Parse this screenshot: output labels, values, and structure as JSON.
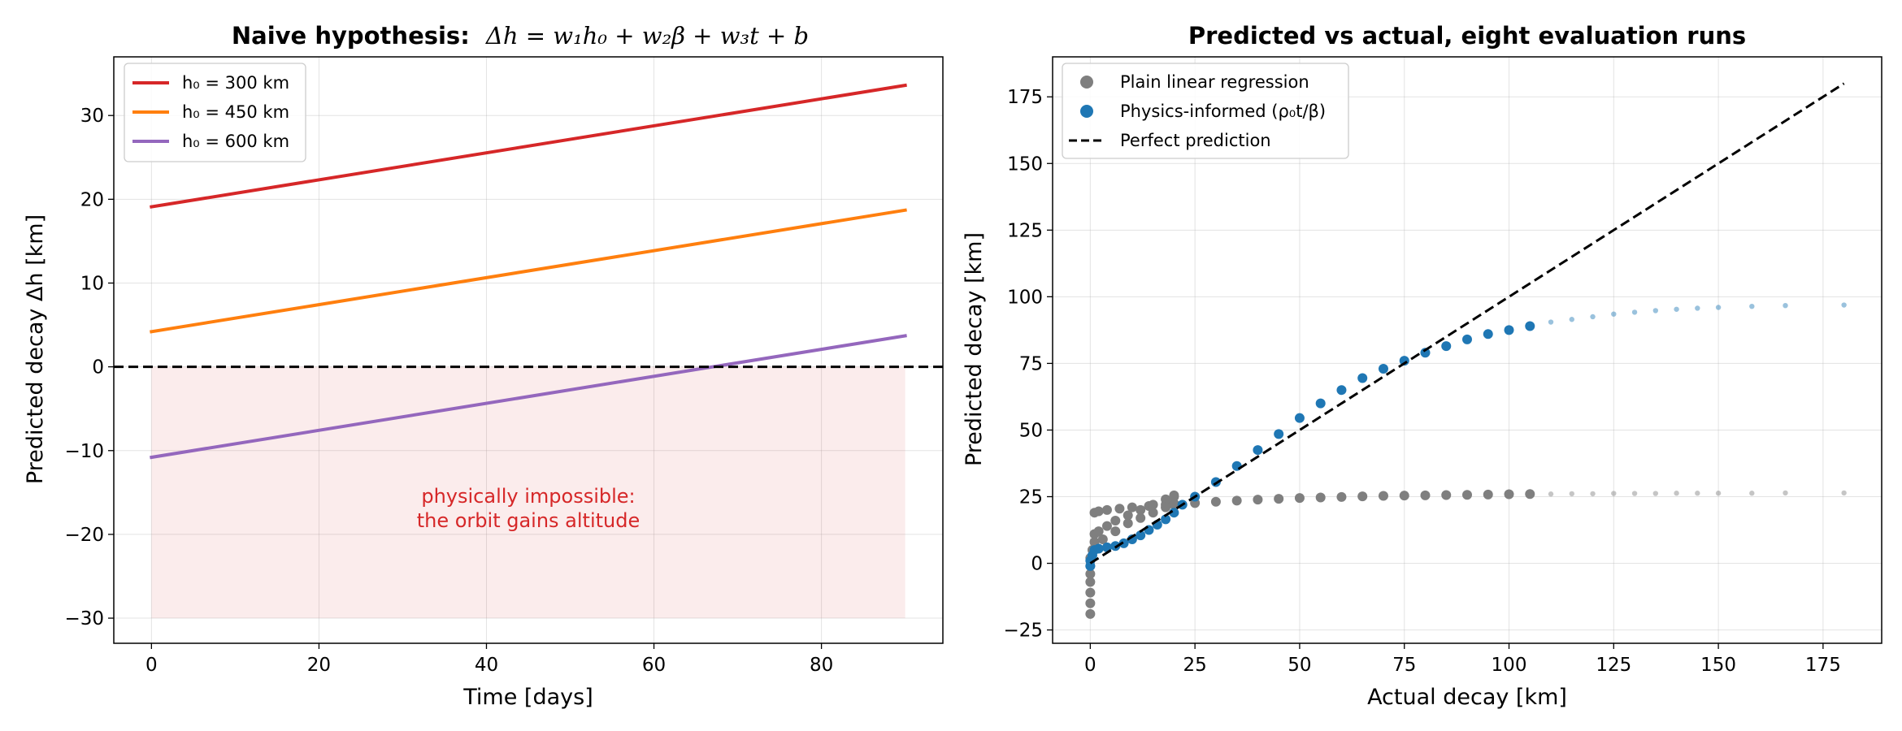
{
  "chart_data": [
    {
      "type": "line",
      "title": {
        "prefix": "Naive hypothesis:",
        "formula": "Δh = w₁h₀ + w₂β + w₃t + b"
      },
      "xlabel": "Time [days]",
      "ylabel": "Predicted decay Δh [km]",
      "xlim": [
        -4.5,
        94.5
      ],
      "ylim": [
        -33,
        37
      ],
      "xticks": [
        0,
        20,
        40,
        60,
        80
      ],
      "yticks": [
        -30,
        -20,
        -10,
        0,
        10,
        20,
        30
      ],
      "grid": true,
      "legend_position": "top-left",
      "series": [
        {
          "name": "h₀ = 300 km",
          "color": "#d62728",
          "x": [
            0,
            90
          ],
          "y": [
            19.1,
            33.6
          ]
        },
        {
          "name": "h₀ = 450 km",
          "color": "#ff7f0e",
          "x": [
            0,
            90
          ],
          "y": [
            4.2,
            18.7
          ]
        },
        {
          "name": "h₀ = 600 km",
          "color": "#9467bd",
          "x": [
            0,
            90
          ],
          "y": [
            -10.8,
            3.7
          ]
        }
      ],
      "reference_line": {
        "y": 0,
        "style": "dashed",
        "color": "#000000"
      },
      "shaded_region": {
        "x": [
          0,
          90
        ],
        "y": [
          -30,
          0
        ],
        "color": "#d62728"
      },
      "annotation": {
        "lines": [
          "physically impossible:",
          "the orbit gains altitude"
        ],
        "x": 45,
        "y": -16.5,
        "color": "#d62728"
      }
    },
    {
      "type": "scatter",
      "title": "Predicted vs actual, eight evaluation runs",
      "xlabel": "Actual decay [km]",
      "ylabel": "Predicted decay [km]",
      "xlim": [
        -9,
        189
      ],
      "ylim": [
        -30,
        190
      ],
      "xticks": [
        0,
        25,
        50,
        75,
        100,
        125,
        150,
        175
      ],
      "yticks": [
        -25,
        0,
        25,
        50,
        75,
        100,
        125,
        150,
        175
      ],
      "grid": true,
      "legend_position": "top-left",
      "series": [
        {
          "name": "Plain linear regression",
          "color": "#7f7f7f",
          "points": [
            [
              0,
              -19
            ],
            [
              0,
              -15
            ],
            [
              0,
              -11
            ],
            [
              0,
              -7
            ],
            [
              0,
              -4
            ],
            [
              0,
              -1
            ],
            [
              0,
              2
            ],
            [
              0.5,
              5
            ],
            [
              1,
              8
            ],
            [
              1,
              11
            ],
            [
              1,
              19
            ],
            [
              2,
              19.5
            ],
            [
              4,
              20
            ],
            [
              7,
              20.5
            ],
            [
              10,
              21
            ],
            [
              14,
              21.5
            ],
            [
              18,
              22
            ],
            [
              20,
              22.5
            ],
            [
              20,
              25.5
            ],
            [
              2,
              12
            ],
            [
              4,
              14
            ],
            [
              6,
              16
            ],
            [
              9,
              18
            ],
            [
              12,
              20
            ],
            [
              15,
              22
            ],
            [
              18,
              24
            ],
            [
              20,
              25
            ],
            [
              3,
              9
            ],
            [
              6,
              12
            ],
            [
              9,
              15
            ],
            [
              12,
              17
            ],
            [
              15,
              19
            ],
            [
              18,
              21
            ],
            [
              20,
              22
            ],
            [
              25,
              22.6
            ],
            [
              30,
              23.1
            ],
            [
              35,
              23.5
            ],
            [
              40,
              23.9
            ],
            [
              45,
              24.2
            ],
            [
              50,
              24.5
            ],
            [
              55,
              24.7
            ],
            [
              60,
              24.9
            ],
            [
              65,
              25.1
            ],
            [
              70,
              25.3
            ],
            [
              75,
              25.4
            ],
            [
              80,
              25.5
            ],
            [
              85,
              25.6
            ],
            [
              90,
              25.7
            ],
            [
              95,
              25.8
            ],
            [
              100,
              25.9
            ],
            [
              105,
              26
            ],
            [
              110,
              26
            ],
            [
              115,
              26.1
            ],
            [
              120,
              26.1
            ],
            [
              125,
              26.2
            ],
            [
              130,
              26.2
            ],
            [
              135,
              26.2
            ],
            [
              140,
              26.3
            ],
            [
              145,
              26.3
            ],
            [
              150,
              26.3
            ],
            [
              158,
              26.3
            ],
            [
              166,
              26.4
            ],
            [
              180,
              26.4
            ]
          ]
        },
        {
          "name": "Physics-informed (ρ₀t/β)",
          "color": "#1f77b4",
          "points": [
            [
              0,
              -1
            ],
            [
              0,
              1
            ],
            [
              0.5,
              3
            ],
            [
              1,
              5
            ],
            [
              2,
              5.5
            ],
            [
              4,
              6
            ],
            [
              6,
              6.5
            ],
            [
              8,
              7.5
            ],
            [
              10,
              9
            ],
            [
              12,
              10.5
            ],
            [
              14,
              12.5
            ],
            [
              16,
              14.5
            ],
            [
              18,
              16.5
            ],
            [
              20,
              19
            ],
            [
              22,
              22
            ],
            [
              25,
              25
            ],
            [
              30,
              30.5
            ],
            [
              35,
              36.5
            ],
            [
              40,
              42.5
            ],
            [
              45,
              48.5
            ],
            [
              50,
              54.5
            ],
            [
              55,
              60
            ],
            [
              60,
              65
            ],
            [
              65,
              69.5
            ],
            [
              70,
              73
            ],
            [
              75,
              76
            ],
            [
              80,
              79
            ],
            [
              85,
              81.5
            ],
            [
              90,
              84
            ],
            [
              95,
              86
            ],
            [
              100,
              87.5
            ],
            [
              105,
              89
            ],
            [
              110,
              90.5
            ],
            [
              115,
              91.5
            ],
            [
              120,
              92.5
            ],
            [
              125,
              93.5
            ],
            [
              130,
              94.2
            ],
            [
              135,
              94.8
            ],
            [
              140,
              95.3
            ],
            [
              145,
              95.7
            ],
            [
              150,
              96
            ],
            [
              158,
              96.4
            ],
            [
              166,
              96.7
            ],
            [
              180,
              96.9
            ]
          ]
        }
      ],
      "reference_line": {
        "name": "Perfect prediction",
        "x": [
          0,
          180
        ],
        "y": [
          0,
          180
        ],
        "style": "dashed",
        "color": "#000000"
      }
    }
  ]
}
